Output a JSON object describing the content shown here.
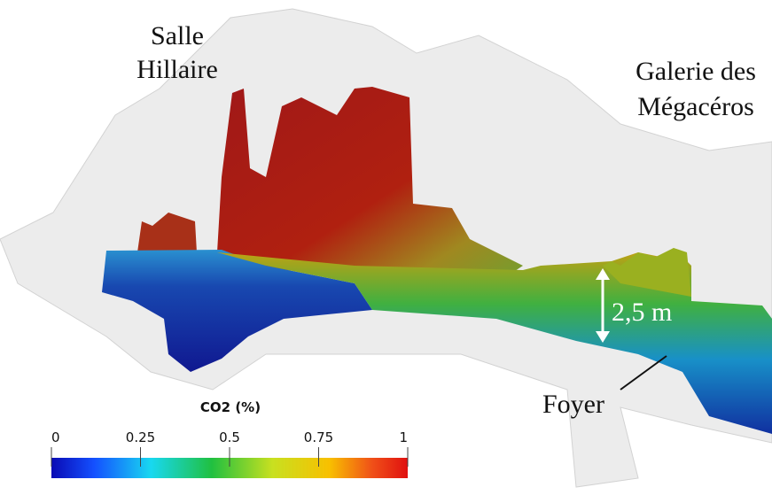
{
  "labels": {
    "room": [
      "Salle",
      "Hillaire"
    ],
    "gallery": [
      "Galerie des",
      "Mégacéros"
    ],
    "height": "2,5 m",
    "hearth": "Foyer"
  },
  "colorbar": {
    "title": "CO2 (%)",
    "lim": [
      0,
      1
    ],
    "ticks": [
      0,
      0.25,
      0.5,
      0.75,
      1
    ]
  }
}
